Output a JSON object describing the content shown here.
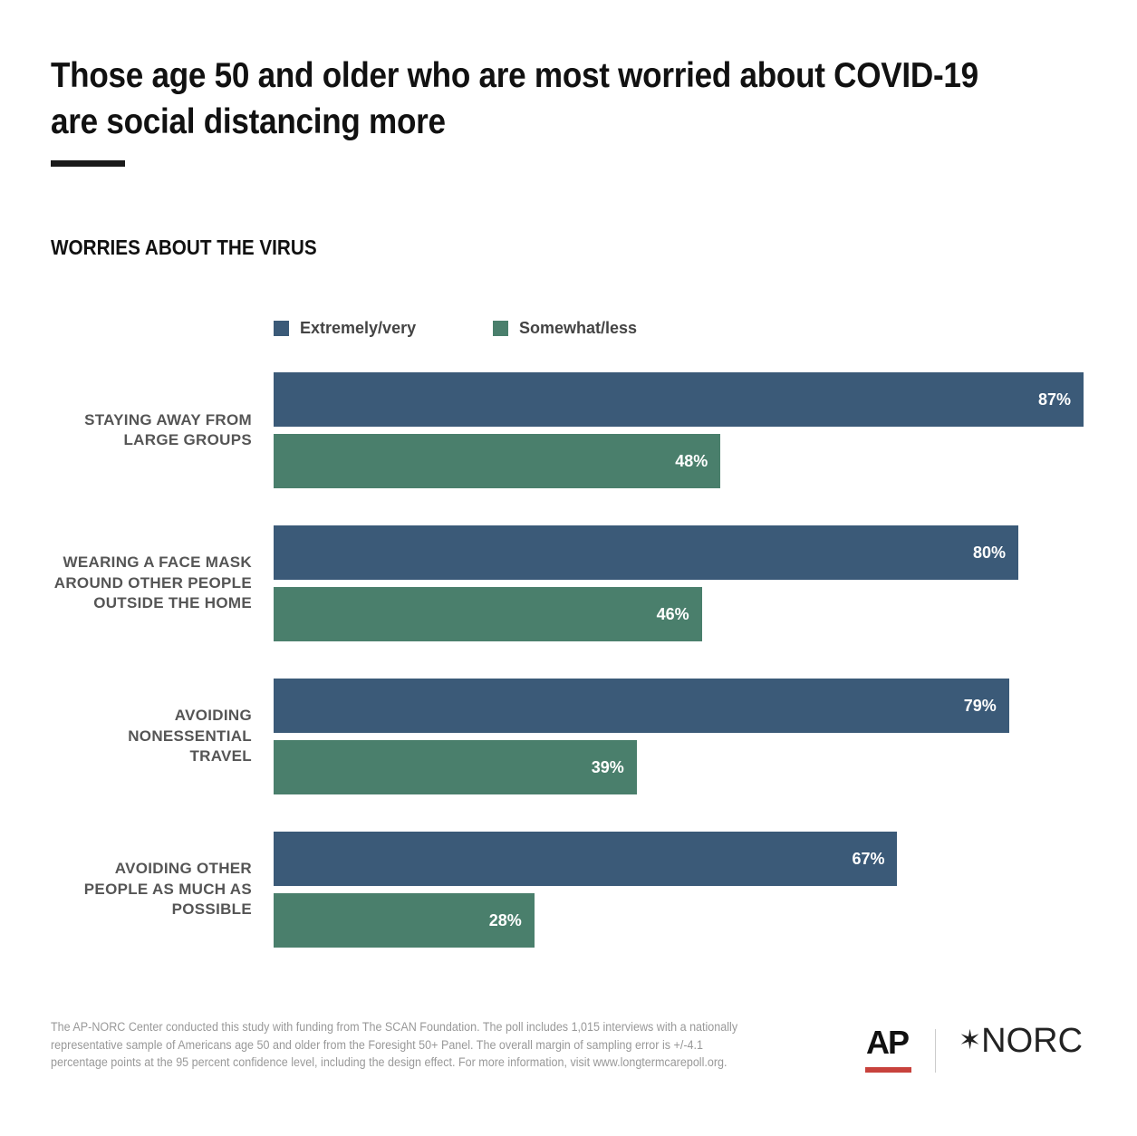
{
  "title": "Those age 50 and older who are most worried about COVID-19 are social distancing more",
  "chart_data": {
    "type": "bar",
    "orientation": "horizontal",
    "subtitle": "WORRIES ABOUT THE VIRUS",
    "categories": [
      "STAYING AWAY FROM LARGE GROUPS",
      "WEARING A FACE MASK AROUND OTHER PEOPLE OUTSIDE THE HOME",
      "AVOIDING NONESSENTIAL TRAVEL",
      "AVOIDING OTHER PEOPLE AS MUCH AS POSSIBLE"
    ],
    "series": [
      {
        "name": "Extremely/very",
        "color": "#3b5a78",
        "values": [
          87,
          80,
          79,
          67
        ]
      },
      {
        "name": "Somewhat/less",
        "color": "#4a7f6c",
        "values": [
          48,
          46,
          39,
          28
        ]
      }
    ],
    "value_suffix": "%",
    "legend": "top",
    "grid": false
  },
  "footer": "The AP-NORC Center conducted this study with funding from The SCAN Foundation. The poll includes 1,015 interviews with a nationally representative sample of Americans age 50 and older from the Foresight 50+ Panel. The overall margin of sampling error is +/-4.1 percentage points at the 95 percent confidence level, including the design effect. For more information, visit www.longtermcarepoll.org.",
  "logos": {
    "ap": "AP",
    "norc": "NORC"
  }
}
